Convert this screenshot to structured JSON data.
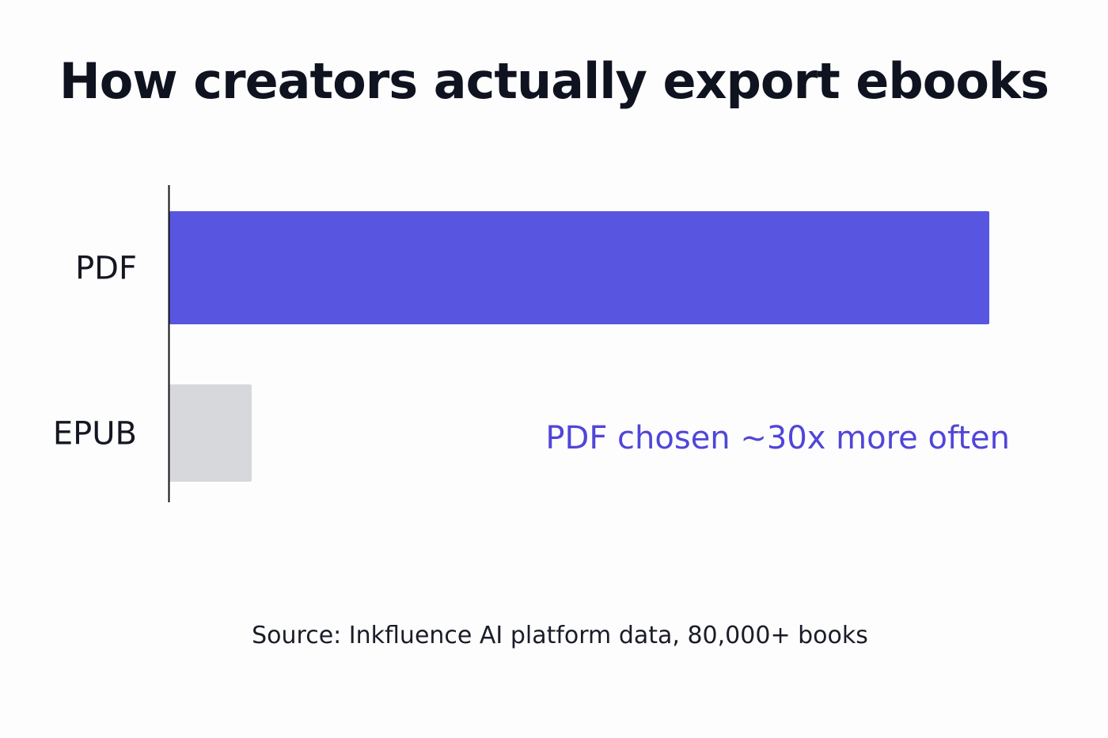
{
  "chart_data": {
    "type": "bar",
    "orientation": "horizontal",
    "title": "How creators actually export ebooks",
    "categories": [
      "PDF",
      "EPUB"
    ],
    "values": [
      30,
      1
    ],
    "value_unit": "relative frequency (EPUB = 1)",
    "xlim": [
      0,
      30
    ],
    "grid": false,
    "legend": "none",
    "colors": [
      "#5856e0",
      "#d6d8db"
    ],
    "annotation": "PDF chosen ~30x more often",
    "annotation_color": "#5046d8",
    "source": "Source: Inkfluence AI platform data, 80,000+ books"
  }
}
